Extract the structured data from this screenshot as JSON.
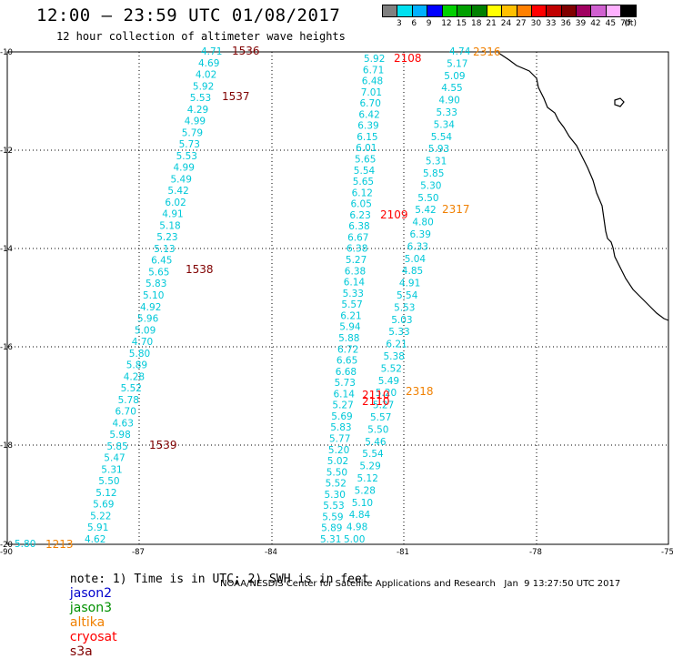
{
  "header": {
    "title": "12:00 — 23:59 UTC 01/08/2017",
    "subtitle": "12 hour collection of altimeter wave heights"
  },
  "legend": {
    "colors": [
      "#808080",
      "#00e0f0",
      "#00b0ff",
      "#0000ff",
      "#00d000",
      "#00a000",
      "#008000",
      "#ffff00",
      "#ffc000",
      "#ff8000",
      "#ff0000",
      "#c00000",
      "#800000",
      "#a00060",
      "#d060d0",
      "#ffb0ff",
      "#000000"
    ],
    "labels": [
      "3",
      "6",
      "9",
      "12",
      "15",
      "18",
      "21",
      "24",
      "27",
      "30",
      "33",
      "36",
      "39",
      "42",
      "45",
      "70",
      "(ft)"
    ]
  },
  "axes": {
    "x_ticks": [
      "-90",
      "-87",
      "-84",
      "-81",
      "-78",
      "-75"
    ],
    "y_ticks": [
      "-10",
      "-12",
      "-14",
      "-16",
      "-18",
      "-20"
    ]
  },
  "colors": {
    "wave": "#00c8d8",
    "jason2": "#0000cc",
    "jason3": "#009000",
    "altika": "#f08000",
    "cryosat": "#ff0000",
    "s3a": "#800000"
  },
  "tracks": [
    {
      "name": "s3a-1536",
      "values": [
        "4.71",
        "4.69",
        "4.02",
        "5.92",
        "5.53",
        "4.29",
        "4.99",
        "5.79",
        "5.73",
        "5.53",
        "4.99",
        "5.49",
        "5.42",
        "6.02",
        "4.91",
        "5.18",
        "5.23",
        "5.13",
        "6.45",
        "5.65",
        "5.83",
        "5.10",
        "4.92",
        "5.96",
        "5.09",
        "4.70",
        "5.80",
        "5.89",
        "4.28",
        "5.52",
        "5.78",
        "6.70",
        "4.63",
        "5.98",
        "5.85",
        "5.47",
        "5.31",
        "5.50",
        "5.12",
        "5.69",
        "5.22",
        "5.91",
        "4.62"
      ]
    },
    {
      "name": "cryosat-2108",
      "values": [
        "5.92",
        "6.71",
        "6.48",
        "7.01",
        "6.70",
        "6.42",
        "6.39",
        "6.15",
        "6.01",
        "5.65",
        "5.54",
        "5.65",
        "6.12",
        "6.05",
        "6.23",
        "6.38",
        "6.67",
        "6.38",
        "5.27",
        "6.38",
        "6.14",
        "5.33",
        "5.57",
        "6.21",
        "5.94",
        "5.88",
        "6.72",
        "6.65",
        "6.68",
        "5.73",
        "6.14",
        "5.27",
        "5.69",
        "5.83",
        "5.77",
        "5.20",
        "5.02",
        "5.50",
        "5.52",
        "5.30",
        "5.53",
        "5.59",
        "5.89",
        "5.31"
      ]
    },
    {
      "name": "altika-2316",
      "values": [
        "4.74",
        "5.17",
        "5.09",
        "4.55",
        "4.90",
        "5.33",
        "5.34",
        "5.54",
        "5.93",
        "5.31",
        "5.85",
        "5.30",
        "5.50",
        "5.42",
        "4.80",
        "6.39",
        "6.33",
        "5.04",
        "4.85",
        "4.91",
        "5.54",
        "5.53",
        "5.03",
        "5.33",
        "6.21",
        "5.38",
        "5.52",
        "5.49",
        "5.20",
        "5.27",
        "5.57",
        "5.50",
        "5.46",
        "5.54",
        "5.29",
        "5.12",
        "5.28",
        "5.10",
        "4.84",
        "4.98",
        "5.00"
      ]
    }
  ],
  "pass_labels": [
    {
      "text": "1536",
      "sat": "s3a"
    },
    {
      "text": "1537",
      "sat": "s3a"
    },
    {
      "text": "1538",
      "sat": "s3a"
    },
    {
      "text": "1539",
      "sat": "s3a"
    },
    {
      "text": "2108",
      "sat": "cryosat"
    },
    {
      "text": "2109",
      "sat": "cryosat"
    },
    {
      "text": "2110",
      "sat": "cryosat"
    },
    {
      "text": "2110",
      "sat": "cryosat"
    },
    {
      "text": "2316",
      "sat": "altika"
    },
    {
      "text": "2317",
      "sat": "altika"
    },
    {
      "text": "2318",
      "sat": "altika"
    },
    {
      "text": "1213",
      "sat": "altika"
    }
  ],
  "edge_value": "5.80",
  "footer": {
    "note": "note: 1) Time is in UTC; 2) SWH is in feet",
    "sats": [
      "jason2",
      "jason3",
      "altika",
      "cryosat",
      "s3a"
    ]
  },
  "credit": "NOAA/NESDIS Center for Satellite Applications and Research   Jan  9 13:27:50 UTC 2017"
}
